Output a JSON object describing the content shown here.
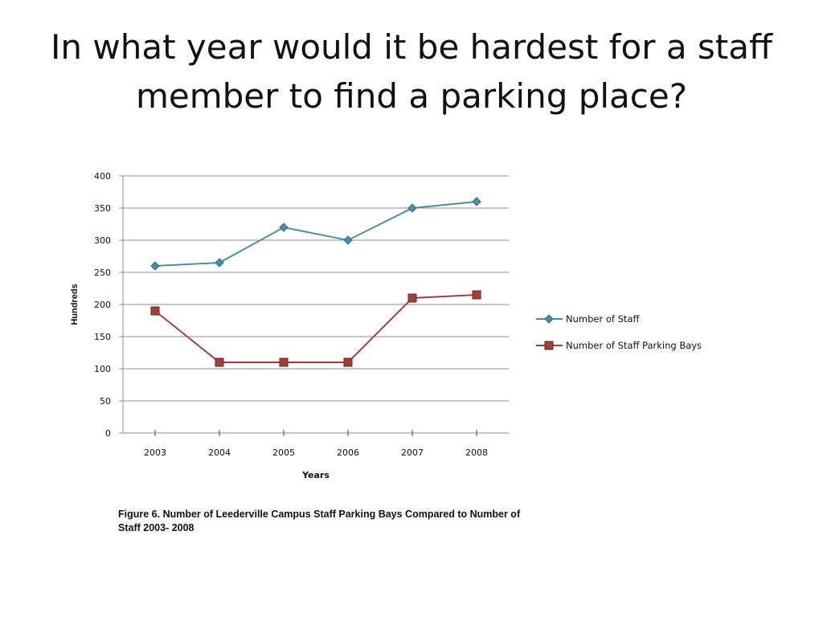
{
  "slide": {
    "title": "In what year would it be hardest for a staff member to find a parking place?"
  },
  "figure": {
    "caption_line1": "Figure 6. Number of Leederville Campus Staff Parking Bays Compared to Number of",
    "caption_line2": "Staff 2003- 2008"
  },
  "chart_data": {
    "type": "line",
    "categories": [
      "2003",
      "2004",
      "2005",
      "2006",
      "2007",
      "2008"
    ],
    "series": [
      {
        "name": "Number of Staff",
        "values": [
          260,
          265,
          320,
          300,
          350,
          360
        ],
        "color": "#4a90a4",
        "marker": "diamond"
      },
      {
        "name": "Number of Staff Parking Bays",
        "values": [
          190,
          110,
          110,
          110,
          210,
          215
        ],
        "color": "#a0403c",
        "marker": "square"
      }
    ],
    "title": "",
    "xlabel": "Years",
    "ylabel": "Hundreds",
    "ylim": [
      0,
      400
    ],
    "yticks": [
      0,
      50,
      100,
      150,
      200,
      250,
      300,
      350,
      400
    ],
    "grid": true,
    "legend_position": "right"
  }
}
